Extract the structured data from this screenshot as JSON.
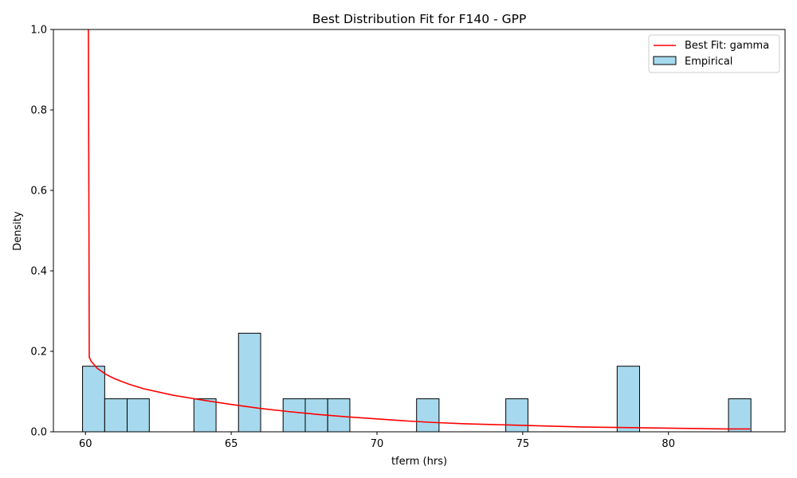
{
  "chart_data": {
    "type": "bar",
    "title": "Best Distribution Fit for F140 - GPP",
    "xlabel": "tferm (hrs)",
    "ylabel": "Density",
    "xlim": [
      58.9,
      84.0
    ],
    "ylim": [
      0,
      1.0
    ],
    "x_ticks": [
      60,
      65,
      70,
      75,
      80
    ],
    "y_ticks": [
      0.0,
      0.2,
      0.4,
      0.6,
      0.8,
      1.0
    ],
    "x_tick_labels": [
      "60",
      "65",
      "70",
      "75",
      "80"
    ],
    "y_tick_labels": [
      "0.0",
      "0.2",
      "0.4",
      "0.6",
      "0.8",
      "1.0"
    ],
    "grid": false,
    "legend_position": "top-right",
    "histogram": {
      "name": "Empirical",
      "color": "#a6d9ee",
      "edge_color": "#000000",
      "bins": [
        {
          "x0": 59.9,
          "x1": 60.66,
          "density": 0.163
        },
        {
          "x0": 60.66,
          "x1": 61.43,
          "density": 0.082
        },
        {
          "x0": 61.43,
          "x1": 62.19,
          "density": 0.082
        },
        {
          "x0": 63.72,
          "x1": 64.48,
          "density": 0.082
        },
        {
          "x0": 65.25,
          "x1": 66.01,
          "density": 0.245
        },
        {
          "x0": 66.78,
          "x1": 67.54,
          "density": 0.082
        },
        {
          "x0": 67.54,
          "x1": 68.31,
          "density": 0.082
        },
        {
          "x0": 68.31,
          "x1": 69.07,
          "density": 0.082
        },
        {
          "x0": 71.36,
          "x1": 72.13,
          "density": 0.082
        },
        {
          "x0": 74.42,
          "x1": 75.18,
          "density": 0.082
        },
        {
          "x0": 78.24,
          "x1": 79.01,
          "density": 0.163
        },
        {
          "x0": 82.06,
          "x1": 82.83,
          "density": 0.082
        }
      ]
    },
    "fit_curve": {
      "name": "Best Fit: gamma",
      "color": "#ff0000",
      "points": [
        [
          60.1,
          1.0
        ],
        [
          60.12,
          0.5
        ],
        [
          60.13,
          0.185
        ],
        [
          60.2,
          0.175
        ],
        [
          60.4,
          0.158
        ],
        [
          60.7,
          0.143
        ],
        [
          61.0,
          0.132
        ],
        [
          61.5,
          0.118
        ],
        [
          62.0,
          0.107
        ],
        [
          63.0,
          0.091
        ],
        [
          64.0,
          0.079
        ],
        [
          65.0,
          0.068
        ],
        [
          66.0,
          0.058
        ],
        [
          67.0,
          0.05
        ],
        [
          68.0,
          0.043
        ],
        [
          69.0,
          0.037
        ],
        [
          70.0,
          0.032
        ],
        [
          71.0,
          0.027
        ],
        [
          72.0,
          0.023
        ],
        [
          73.0,
          0.02
        ],
        [
          74.0,
          0.018
        ],
        [
          75.0,
          0.016
        ],
        [
          76.0,
          0.014
        ],
        [
          77.0,
          0.012
        ],
        [
          78.0,
          0.011
        ],
        [
          79.0,
          0.01
        ],
        [
          80.0,
          0.009
        ],
        [
          81.0,
          0.008
        ],
        [
          82.0,
          0.007
        ],
        [
          82.8,
          0.007
        ]
      ]
    }
  }
}
